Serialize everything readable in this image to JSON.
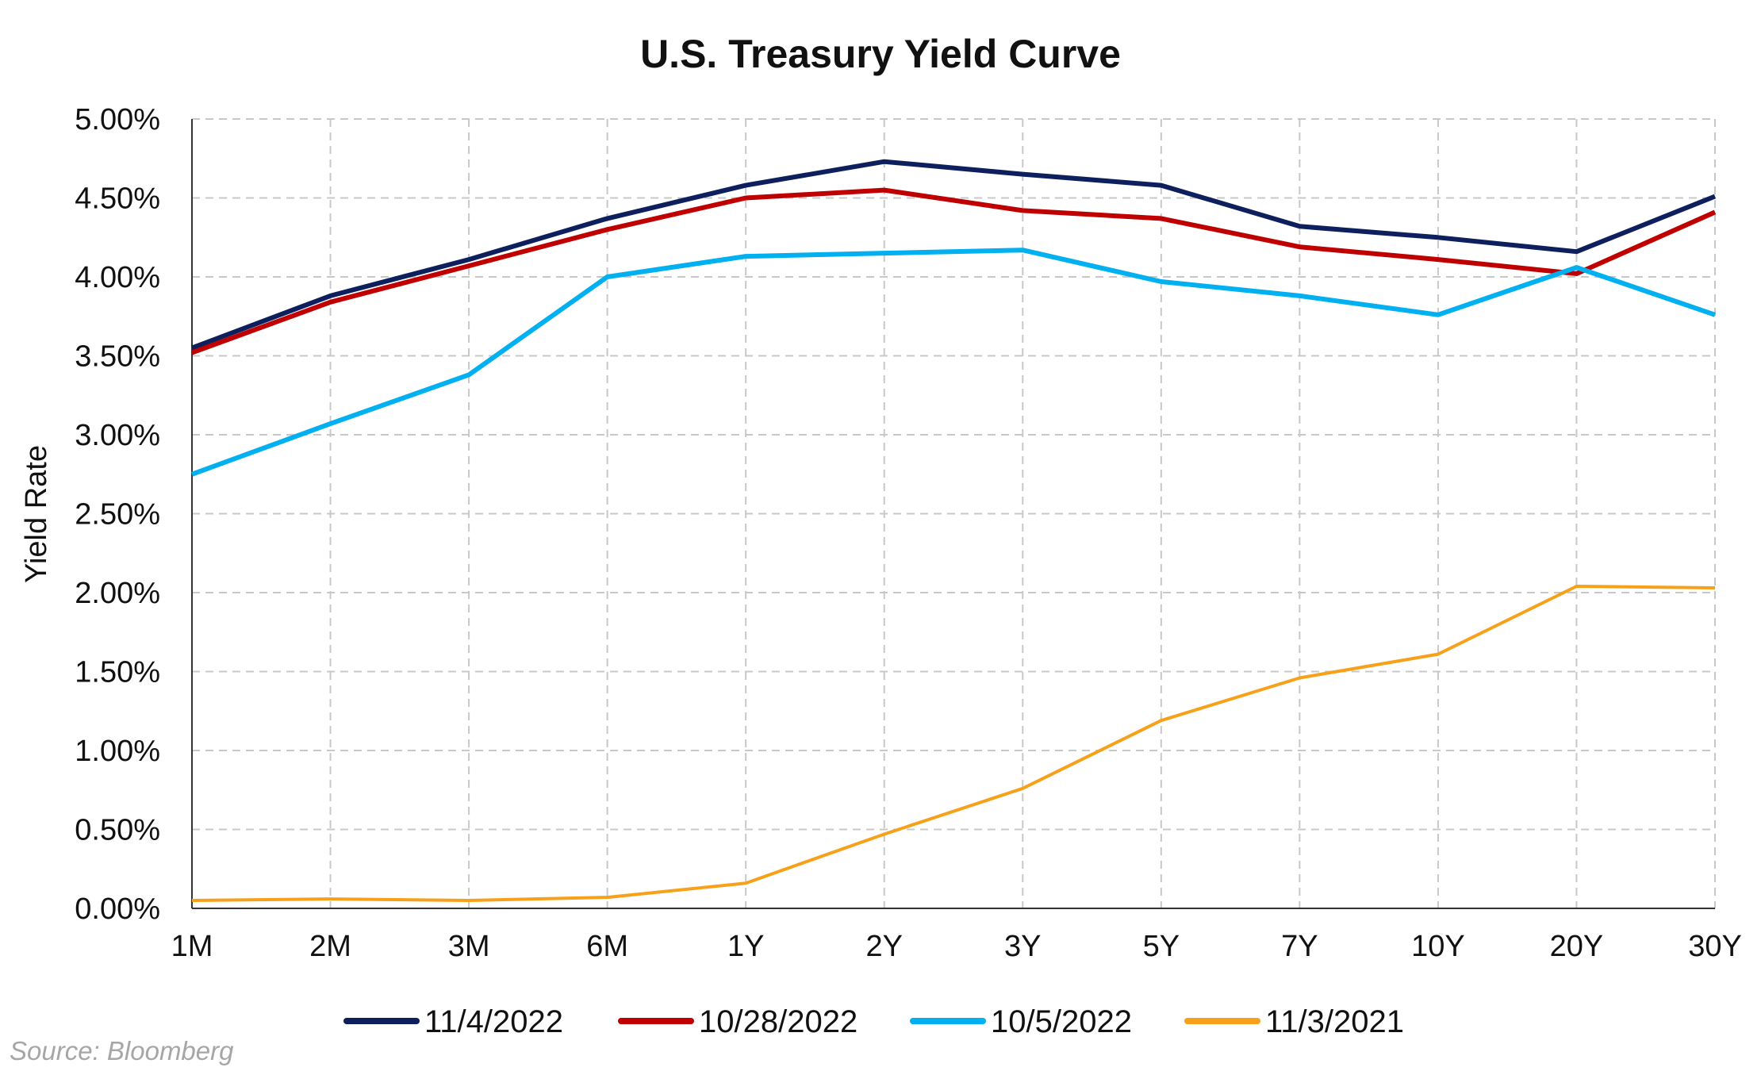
{
  "chart_data": {
    "type": "line",
    "title": "U.S. Treasury Yield Curve",
    "xlabel": "",
    "ylabel": "Yield Rate",
    "categories": [
      "1M",
      "2M",
      "3M",
      "6M",
      "1Y",
      "2Y",
      "3Y",
      "5Y",
      "7Y",
      "10Y",
      "20Y",
      "30Y"
    ],
    "ylim": [
      0,
      5
    ],
    "yticks": [
      "0.00%",
      "0.50%",
      "1.00%",
      "1.50%",
      "2.00%",
      "2.50%",
      "3.00%",
      "3.50%",
      "4.00%",
      "4.50%",
      "5.00%"
    ],
    "grid": true,
    "legend_position": "bottom",
    "series": [
      {
        "name": "11/4/2022",
        "color": "#0d1f5c",
        "values": [
          3.55,
          3.88,
          4.11,
          4.37,
          4.58,
          4.73,
          4.65,
          4.58,
          4.32,
          4.25,
          4.16,
          4.51
        ]
      },
      {
        "name": "10/28/2022",
        "color": "#c00000",
        "values": [
          3.52,
          3.84,
          4.07,
          4.3,
          4.5,
          4.55,
          4.42,
          4.37,
          4.19,
          4.11,
          4.02,
          4.41
        ]
      },
      {
        "name": "10/5/2022",
        "color": "#00b0f0",
        "values": [
          2.75,
          3.07,
          3.38,
          4.0,
          4.13,
          4.15,
          4.17,
          3.97,
          3.88,
          3.76,
          4.06,
          3.76
        ]
      },
      {
        "name": "11/3/2021",
        "color": "#f7a11a",
        "values": [
          0.05,
          0.06,
          0.05,
          0.07,
          0.16,
          0.47,
          0.76,
          1.19,
          1.46,
          1.61,
          2.04,
          2.03
        ]
      }
    ]
  },
  "footer": {
    "source": "Source: Bloomberg"
  }
}
